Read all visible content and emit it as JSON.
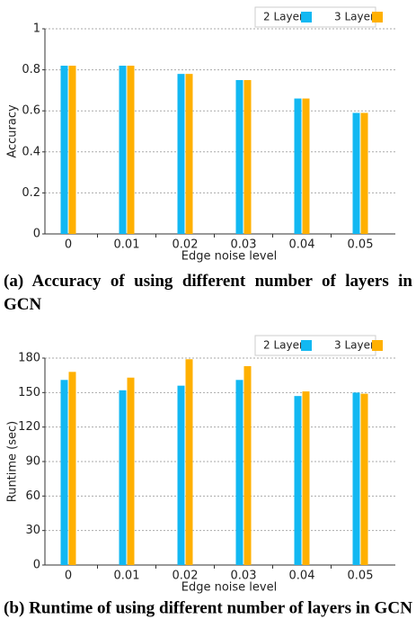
{
  "chart_data": [
    {
      "type": "bar",
      "caption": "(a) Accuracy of using different number of layers in GCN",
      "xlabel": "Edge noise level",
      "ylabel": "Accuracy",
      "categories": [
        "0",
        "0.01",
        "0.02",
        "0.03",
        "0.04",
        "0.05"
      ],
      "series": [
        {
          "name": "2 Layers",
          "color": "#12b8f2",
          "values": [
            0.82,
            0.82,
            0.78,
            0.75,
            0.66,
            0.59
          ]
        },
        {
          "name": "3 Layers",
          "color": "#ffb000",
          "values": [
            0.82,
            0.82,
            0.78,
            0.75,
            0.66,
            0.59
          ]
        }
      ],
      "ylim": [
        0,
        1
      ],
      "yticks": [
        0,
        0.2,
        0.4,
        0.6,
        0.8,
        1
      ],
      "grid": true,
      "legend": "upper right"
    },
    {
      "type": "bar",
      "caption": "(b) Runtime of using different number of layers in GCN",
      "xlabel": "Edge noise level",
      "ylabel": "Runtime (sec)",
      "categories": [
        "0",
        "0.01",
        "0.02",
        "0.03",
        "0.04",
        "0.05"
      ],
      "series": [
        {
          "name": "2 Layers",
          "color": "#12b8f2",
          "values": [
            161,
            152,
            156,
            161,
            147,
            150
          ]
        },
        {
          "name": "3 Layers",
          "color": "#ffb000",
          "values": [
            168,
            163,
            179,
            173,
            151,
            149
          ]
        }
      ],
      "ylim": [
        0,
        180
      ],
      "yticks": [
        0,
        30,
        60,
        90,
        120,
        150,
        180
      ],
      "grid": true,
      "legend": "upper right"
    }
  ]
}
